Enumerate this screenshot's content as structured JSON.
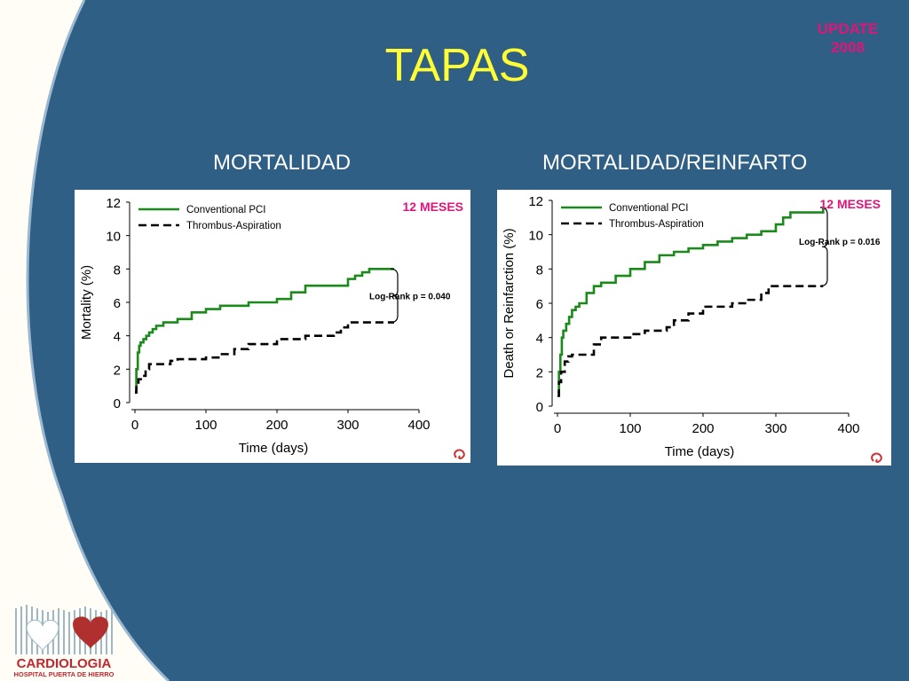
{
  "slide": {
    "title": "TAPAS",
    "badge": "UPDATE 2008",
    "left_heading": "MORTALIDAD",
    "right_heading": "MORTALIDAD/REINFARTO",
    "logo_name": "CARDIOLOGIA",
    "logo_subtitle": "HOSPITAL PUERTA DE HIERRO",
    "colors": {
      "background": "#2f5f85",
      "title": "#ffff33",
      "badge": "#e0157a",
      "conventional": "#1a8a1a",
      "thrombus": "#000000"
    }
  },
  "chart_data": [
    {
      "type": "line",
      "title": "",
      "xlabel": "Time (days)",
      "ylabel": "Mortality (%)",
      "xlim": [
        0,
        400
      ],
      "ylim": [
        0,
        12
      ],
      "xticks": [
        "0",
        "100",
        "200",
        "300",
        "400"
      ],
      "yticks": [
        "0",
        "2",
        "4",
        "6",
        "8",
        "10",
        "12"
      ],
      "annotation": "Log-Rank p = 0.040",
      "tag": "12 MESES",
      "legend_position": "top-left",
      "series": [
        {
          "name": "Conventional PCI",
          "style": "solid",
          "color": "#1a8a1a",
          "x": [
            0,
            2,
            4,
            6,
            8,
            12,
            16,
            20,
            25,
            30,
            40,
            60,
            80,
            100,
            120,
            160,
            200,
            220,
            240,
            270,
            300,
            310,
            320,
            330,
            340,
            365
          ],
          "y": [
            0.7,
            2.0,
            3.0,
            3.4,
            3.6,
            3.8,
            4.0,
            4.2,
            4.4,
            4.6,
            4.8,
            5.0,
            5.4,
            5.6,
            5.8,
            6.0,
            6.2,
            6.6,
            7.0,
            7.0,
            7.4,
            7.6,
            7.8,
            8.0,
            8.0,
            8.0
          ]
        },
        {
          "name": "Thrombus-Aspiration",
          "style": "dashed",
          "color": "#000000",
          "x": [
            0,
            2,
            5,
            10,
            15,
            20,
            30,
            50,
            60,
            80,
            100,
            120,
            140,
            160,
            200,
            240,
            280,
            290,
            300,
            340,
            365
          ],
          "y": [
            0.6,
            1.0,
            1.4,
            1.6,
            2.0,
            2.3,
            2.3,
            2.5,
            2.6,
            2.6,
            2.7,
            2.9,
            3.2,
            3.5,
            3.8,
            4.0,
            4.2,
            4.5,
            4.8,
            4.8,
            4.8
          ]
        }
      ]
    },
    {
      "type": "line",
      "title": "",
      "xlabel": "Time (days)",
      "ylabel": "Death or Reinfarction (%)",
      "xlim": [
        0,
        400
      ],
      "ylim": [
        0,
        12
      ],
      "xticks": [
        "0",
        "100",
        "200",
        "300",
        "400"
      ],
      "yticks": [
        "0",
        "2",
        "4",
        "6",
        "8",
        "10",
        "12"
      ],
      "annotation": "Log-Rank p = 0.016",
      "tag": "12 MESES",
      "legend_position": "top-left",
      "series": [
        {
          "name": "Conventional PCI",
          "style": "solid",
          "color": "#1a8a1a",
          "x": [
            0,
            2,
            4,
            6,
            8,
            12,
            16,
            20,
            25,
            30,
            40,
            50,
            60,
            80,
            100,
            120,
            140,
            160,
            180,
            200,
            220,
            240,
            260,
            280,
            300,
            310,
            320,
            330,
            340,
            365
          ],
          "y": [
            0.8,
            2.0,
            3.0,
            4.0,
            4.4,
            4.8,
            5.2,
            5.6,
            5.8,
            6.0,
            6.6,
            7.0,
            7.2,
            7.6,
            8.0,
            8.4,
            8.8,
            9.0,
            9.2,
            9.4,
            9.6,
            9.8,
            10.0,
            10.2,
            10.6,
            11.0,
            11.3,
            11.3,
            11.3,
            11.6
          ]
        },
        {
          "name": "Thrombus-Aspiration",
          "style": "dashed",
          "color": "#000000",
          "x": [
            0,
            2,
            5,
            10,
            15,
            20,
            30,
            50,
            60,
            80,
            100,
            120,
            150,
            160,
            180,
            200,
            240,
            260,
            280,
            290,
            300,
            340,
            365
          ],
          "y": [
            0.6,
            1.4,
            2.0,
            2.6,
            2.9,
            3.0,
            3.0,
            3.6,
            4.0,
            4.0,
            4.2,
            4.4,
            4.6,
            5.0,
            5.4,
            5.8,
            6.0,
            6.2,
            6.6,
            7.0,
            7.0,
            7.0,
            7.0
          ]
        }
      ]
    }
  ]
}
